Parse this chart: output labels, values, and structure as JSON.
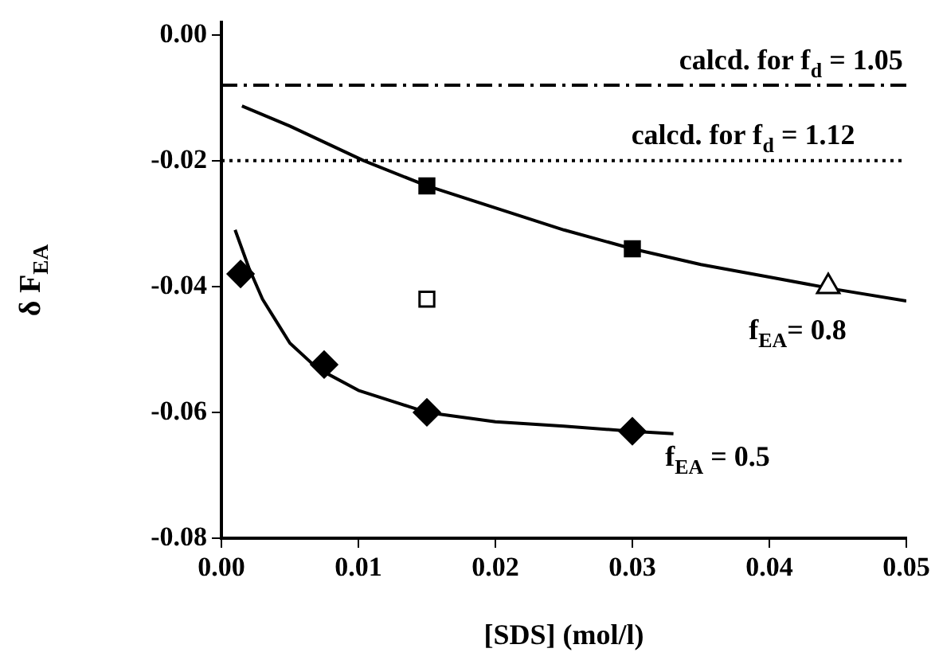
{
  "chart_data": {
    "type": "scatter",
    "xlabel": "[SDS] (mol/l)",
    "ylabel": "δ F$_{EA}$",
    "xlim": [
      0,
      0.05
    ],
    "xticks": [
      {
        "value": 0,
        "label": "0.00"
      },
      {
        "value": 0.01,
        "label": "0.01"
      },
      {
        "value": 0.02,
        "label": "0.02"
      },
      {
        "value": 0.03,
        "label": "0.03"
      },
      {
        "value": 0.04,
        "label": "0.04"
      },
      {
        "value": 0.05,
        "label": "0.05"
      }
    ],
    "ylim": [
      -0.08,
      0.002
    ],
    "yticks": [
      {
        "value": -0.08,
        "label": "-0.08"
      },
      {
        "value": -0.06,
        "label": "-0.06"
      },
      {
        "value": -0.04,
        "label": "-0.04"
      },
      {
        "value": -0.02,
        "label": "-0.02"
      },
      {
        "value": 0,
        "label": "0.00"
      }
    ],
    "grid": false,
    "legend": false,
    "series": [
      {
        "marker": "diamond",
        "color": "#000000",
        "x": [
          0.0014,
          0.0075,
          0.015,
          0.03
        ],
        "values": [
          -0.038,
          -0.0524,
          -0.06,
          -0.063
        ]
      },
      {
        "marker": "square",
        "color": "#000000",
        "x": [
          0.015,
          0.03
        ],
        "values": [
          -0.024,
          -0.034
        ]
      },
      {
        "marker": "square",
        "color": "#ffffff",
        "x": [
          0.015
        ],
        "values": [
          -0.042
        ]
      },
      {
        "marker": "triangle",
        "color": "#ffffff",
        "x": [
          0.0443
        ],
        "values": [
          -0.04
        ]
      },
      {
        "type": "line",
        "marker": "none",
        "line_style": "solid",
        "color": "#000000",
        "x": [
          0.0015,
          0.005,
          0.0104,
          0.015,
          0.02,
          0.025,
          0.03,
          0.035,
          0.04,
          0.045,
          0.05
        ],
        "values": [
          -0.0113,
          -0.0145,
          -0.02,
          -0.024,
          -0.0275,
          -0.031,
          -0.034,
          -0.0365,
          -0.0385,
          -0.0405,
          -0.0423
        ]
      },
      {
        "type": "line",
        "marker": "none",
        "line_style": "solid",
        "color": "#000000",
        "x": [
          0.001,
          0.002,
          0.003,
          0.004,
          0.005,
          0.007,
          0.01,
          0.015,
          0.02,
          0.025,
          0.03,
          0.033
        ],
        "values": [
          -0.031,
          -0.037,
          -0.042,
          -0.0455,
          -0.049,
          -0.053,
          -0.0565,
          -0.06,
          -0.0615,
          -0.0622,
          -0.063,
          -0.0634
        ]
      }
    ],
    "ref_lines": [
      {
        "axis": "y",
        "value": -0.008,
        "line_style": "dashdot",
        "color": "#000000"
      },
      {
        "axis": "y",
        "value": -0.02,
        "line_style": "dotted",
        "color": "#000000"
      }
    ],
    "annotations": [
      "calcd. for f$_{d}$ = 1.05",
      "calcd. for f$_{d}$ = 1.12",
      "f$_{EA}$= 0.8",
      "f$_{EA}$ = 0.5"
    ]
  }
}
